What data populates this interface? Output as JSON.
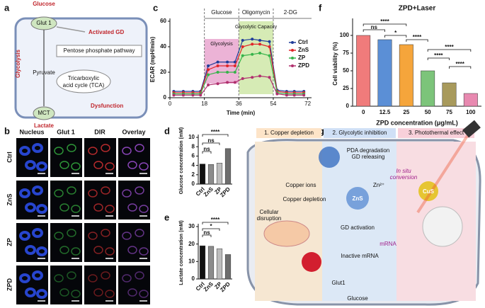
{
  "panel_labels": [
    "a",
    "b",
    "c",
    "d",
    "e",
    "f",
    "g"
  ],
  "scheme_a": {
    "glucose": "Glucose",
    "glut1": "Glut 1",
    "activated_gd": "Activated GD",
    "glycolysis": "Glycolysis",
    "ppp": "Pentose phosphate pathway",
    "pyruvate": "Pyruvate",
    "tca": [
      "Tricarboxylic",
      "acid cycle (TCA)"
    ],
    "dysfunction": "Dysfunction",
    "mct": "MCT",
    "lactate": "Lactate"
  },
  "imaging": {
    "columns": [
      "Nucleus",
      "Glut 1",
      "DIR",
      "Overlay"
    ],
    "rows": [
      "Ctrl",
      "ZnS",
      "ZP",
      "ZPD"
    ]
  },
  "scheme_g": {
    "steps": [
      "1. Copper depletion",
      "2. Glycolytic inhibition",
      "3. Photothermal effect"
    ],
    "labels": {
      "pda": "PDA degradation",
      "gd": "GD releasing",
      "copper_ions": "Copper ions",
      "copper_depletion": "Copper depletion",
      "cellular": "Cellular",
      "disruption": "disruption",
      "zns": "ZnS",
      "zn": "Zn²⁺",
      "in_situ": "In situ",
      "conversion": "conversion",
      "cus": "CuS",
      "gd_activation": "GD activation",
      "mrna": "mRNA",
      "inactive": "Inactive mRNA",
      "glut1": "Glut1",
      "glucose": "Glucose"
    }
  },
  "chart_data": [
    {
      "type": "line",
      "xlabel": "Time (min)",
      "ylabel": "ECAR (mpH/min)",
      "x": [
        2,
        7,
        12,
        16,
        20,
        25,
        30,
        34,
        38,
        43,
        47,
        52,
        56,
        61,
        65,
        70
      ],
      "xlim": [
        0,
        74
      ],
      "xticks": [
        0,
        18,
        36,
        54,
        72
      ],
      "ylim": [
        0,
        60
      ],
      "yticks": [
        0,
        20,
        40,
        60
      ],
      "phases": [
        "Glucose",
        "Oligomycin",
        "2-DG"
      ],
      "regions": [
        {
          "label": "Glycolysis",
          "color": "#e9a6cf"
        },
        {
          "label": "Glycolytic Capacity",
          "color": "#cfe8a8"
        }
      ],
      "legend": "right",
      "series": [
        {
          "name": "Ctrl",
          "color": "#1f3c99",
          "values": [
            5,
            5,
            5,
            5,
            25,
            28,
            28,
            28,
            45,
            46,
            45,
            44,
            6,
            5,
            5,
            5
          ]
        },
        {
          "name": "ZnS",
          "color": "#e0262a",
          "values": [
            4,
            4,
            4,
            4,
            22,
            25,
            25,
            25,
            40,
            42,
            42,
            40,
            5,
            4,
            4,
            4
          ]
        },
        {
          "name": "ZP",
          "color": "#36b34a",
          "values": [
            3,
            3,
            3,
            3,
            18,
            20,
            20,
            20,
            33,
            34,
            35,
            33,
            4,
            3,
            3,
            3
          ]
        },
        {
          "name": "ZPD",
          "color": "#b0306e",
          "values": [
            2,
            2,
            2,
            2,
            10,
            11,
            12,
            12,
            15,
            16,
            17,
            16,
            3,
            2,
            2,
            2
          ]
        }
      ]
    },
    {
      "type": "bar",
      "ylabel": "Glucose concentration (mM)",
      "categories": [
        "Ctrl",
        "ZnS",
        "ZP",
        "ZPD"
      ],
      "values": [
        4.3,
        4.2,
        4.5,
        7.6
      ],
      "colors": [
        "#111111",
        "#8c8c8c",
        "#bdbdbd",
        "#6e6e6e"
      ],
      "ylim": [
        0,
        10
      ],
      "yticks": [
        0,
        2,
        4,
        6,
        8,
        10
      ],
      "annotations": [
        {
          "label": "****"
        },
        {
          "label": "ns"
        },
        {
          "label": "ns"
        }
      ]
    },
    {
      "type": "bar",
      "ylabel": "Lactate concentration (mM)",
      "categories": [
        "Ctrl",
        "ZnS",
        "ZP",
        "ZPD"
      ],
      "values": [
        19,
        18.7,
        17.3,
        14
      ],
      "colors": [
        "#111111",
        "#8c8c8c",
        "#bdbdbd",
        "#6e6e6e"
      ],
      "ylim": [
        0,
        30
      ],
      "yticks": [
        0,
        10,
        20,
        30
      ],
      "annotations": [
        {
          "label": "****"
        },
        {
          "label": "*"
        },
        {
          "label": "ns"
        }
      ]
    },
    {
      "type": "bar",
      "title": "ZPD+Laser",
      "xlabel": "ZPD concentration (μg/mL)",
      "ylabel": "Cell viability (%)",
      "categories": [
        "0",
        "12.5",
        "25",
        "50",
        "75",
        "100"
      ],
      "values": [
        100,
        94,
        87,
        50,
        33,
        18
      ],
      "colors": [
        "#f07b7b",
        "#5b8fd6",
        "#f5a53b",
        "#7cc47a",
        "#a89a5c",
        "#e889b0"
      ],
      "ylim": [
        0,
        120
      ],
      "yticks": [
        0,
        25,
        50,
        75,
        100
      ],
      "annotations": [
        {
          "label": "****"
        },
        {
          "label": "ns"
        },
        {
          "label": "*"
        },
        {
          "label": "****"
        },
        {
          "label": "****"
        },
        {
          "label": "****"
        },
        {
          "label": "****"
        }
      ]
    }
  ]
}
